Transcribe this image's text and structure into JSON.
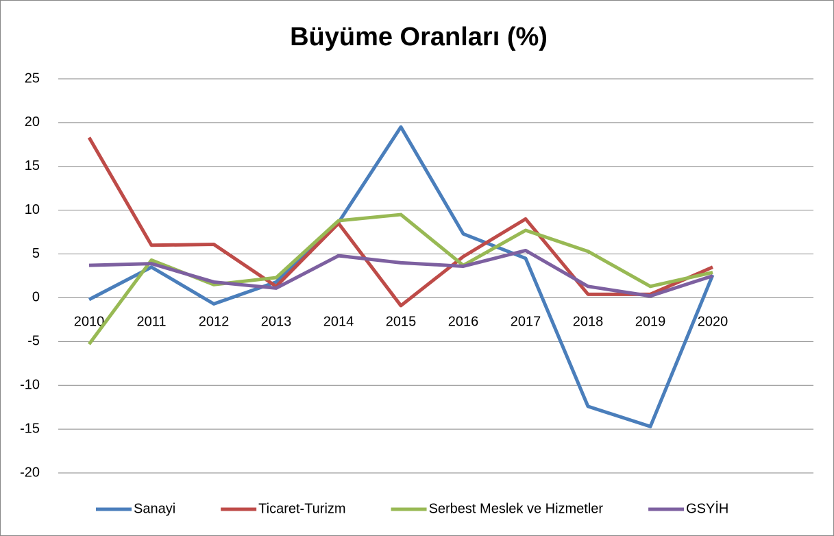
{
  "chart_data": {
    "type": "line",
    "title": "Büyüme Oranları (%)",
    "categories": [
      "2010",
      "2011",
      "2012",
      "2013",
      "2014",
      "2015",
      "2016",
      "2017",
      "2018",
      "2019",
      "2020"
    ],
    "series": [
      {
        "name": "Sanayi",
        "color": "#4a7ebb",
        "values": [
          -0.2,
          3.5,
          -0.7,
          1.8,
          8.6,
          19.5,
          7.3,
          4.5,
          -12.4,
          -14.7,
          2.6
        ]
      },
      {
        "name": "Ticaret-Turizm",
        "color": "#be4b48",
        "values": [
          18.3,
          6.0,
          6.1,
          1.3,
          8.5,
          -0.9,
          4.7,
          9.0,
          0.4,
          0.4,
          3.5
        ]
      },
      {
        "name": "Serbest Meslek ve Hizmetler",
        "color": "#98b954",
        "values": [
          -5.3,
          4.3,
          1.5,
          2.3,
          8.8,
          9.5,
          3.7,
          7.7,
          5.3,
          1.3,
          2.9
        ]
      },
      {
        "name": "GSYİH",
        "color": "#7d60a0",
        "values": [
          3.7,
          3.9,
          1.8,
          1.1,
          4.8,
          4.0,
          3.6,
          5.4,
          1.3,
          0.2,
          2.5
        ]
      }
    ],
    "ylim": [
      -20,
      25
    ],
    "yticks": [
      -20,
      -15,
      -10,
      -5,
      0,
      5,
      10,
      15,
      20,
      25
    ],
    "grid": true,
    "legend": "bottom"
  }
}
